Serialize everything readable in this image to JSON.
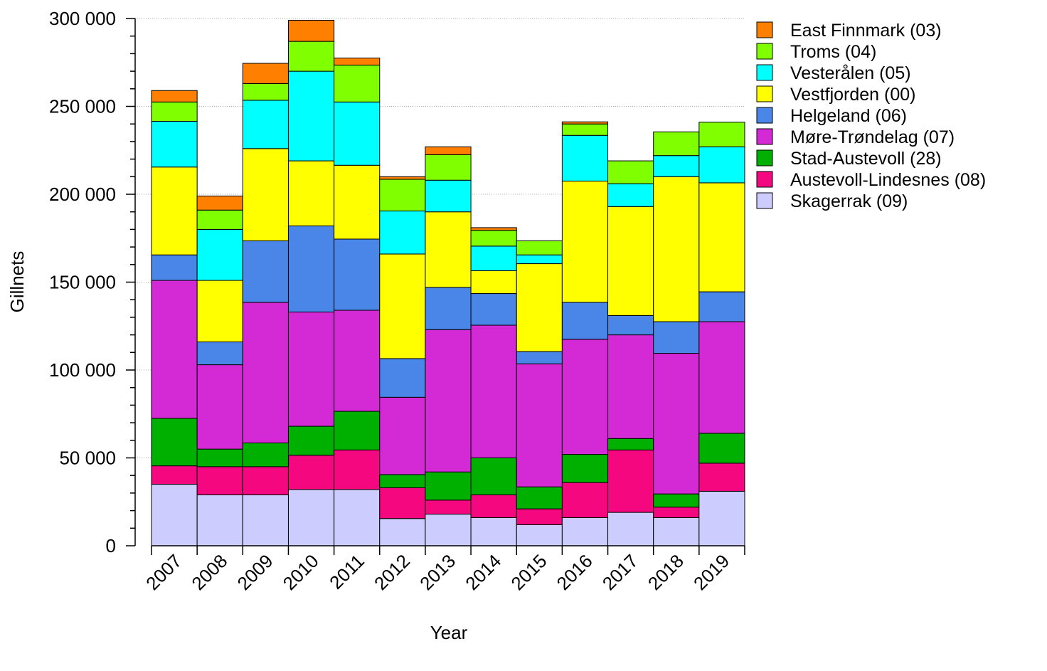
{
  "chart_data": {
    "type": "bar",
    "stacked": true,
    "xlabel": "Year",
    "ylabel": "Gillnets",
    "ylim": [
      0,
      300000
    ],
    "yticks": [
      0,
      50000,
      100000,
      150000,
      200000,
      250000,
      300000
    ],
    "ytick_labels": [
      "0",
      "50 000",
      "100 000",
      "150 000",
      "200 000",
      "250 000",
      "300 000"
    ],
    "grid": "horizontal dotted at major ticks",
    "legend_position": "top-right, outside plot",
    "categories": [
      "2007",
      "2008",
      "2009",
      "2010",
      "2011",
      "2012",
      "2013",
      "2014",
      "2015",
      "2016",
      "2017",
      "2018",
      "2019"
    ],
    "series": [
      {
        "name": "Skagerrak (09)",
        "color": "#CCCCFF",
        "values": [
          35000,
          29000,
          29000,
          32000,
          32000,
          15500,
          18000,
          16000,
          12000,
          16000,
          19000,
          16000,
          31000
        ]
      },
      {
        "name": "Austevoll-Lindesnes (08)",
        "color": "#F5077F",
        "values": [
          10500,
          16000,
          16000,
          19500,
          22500,
          17500,
          8000,
          13000,
          9000,
          20000,
          35500,
          6000,
          16000
        ]
      },
      {
        "name": "Stad-Austevoll (28)",
        "color": "#00B000",
        "values": [
          27000,
          10000,
          13500,
          16500,
          22000,
          7500,
          16000,
          21000,
          12500,
          16000,
          6500,
          7500,
          17000
        ]
      },
      {
        "name": "Møre-Trøndelag (07)",
        "color": "#D42AD6",
        "values": [
          78500,
          48000,
          80000,
          65000,
          57500,
          44000,
          81000,
          75500,
          70000,
          65500,
          59000,
          80000,
          63500
        ]
      },
      {
        "name": "Helgeland (06)",
        "color": "#4A86E8",
        "values": [
          14500,
          13000,
          35000,
          49000,
          40500,
          22000,
          24000,
          18000,
          7000,
          21000,
          11000,
          18000,
          17000
        ]
      },
      {
        "name": "Vestfjorden (00)",
        "color": "#FFFF00",
        "values": [
          50000,
          35000,
          52500,
          37000,
          42000,
          59500,
          43000,
          13000,
          50000,
          69000,
          62000,
          82500,
          62000
        ]
      },
      {
        "name": "Vesterålen (05)",
        "color": "#00FFFF",
        "values": [
          26000,
          29000,
          27500,
          51000,
          36000,
          24500,
          18000,
          14000,
          5000,
          26000,
          13000,
          12000,
          20500
        ]
      },
      {
        "name": "Troms (04)",
        "color": "#80FF00",
        "values": [
          11000,
          11000,
          9500,
          17000,
          21000,
          18000,
          14500,
          9000,
          8000,
          6500,
          13000,
          13500,
          14000
        ]
      },
      {
        "name": "East Finnmark (03)",
        "color": "#FF7F00",
        "values": [
          6500,
          8000,
          11500,
          12000,
          4000,
          1500,
          4500,
          1500,
          0,
          1200,
          0,
          0,
          0
        ]
      }
    ],
    "legend_order": [
      "East Finnmark (03)",
      "Troms (04)",
      "Vesterålen (05)",
      "Vestfjorden (00)",
      "Helgeland (06)",
      "Møre-Trøndelag (07)",
      "Stad-Austevoll (28)",
      "Austevoll-Lindesnes (08)",
      "Skagerrak (09)"
    ]
  }
}
